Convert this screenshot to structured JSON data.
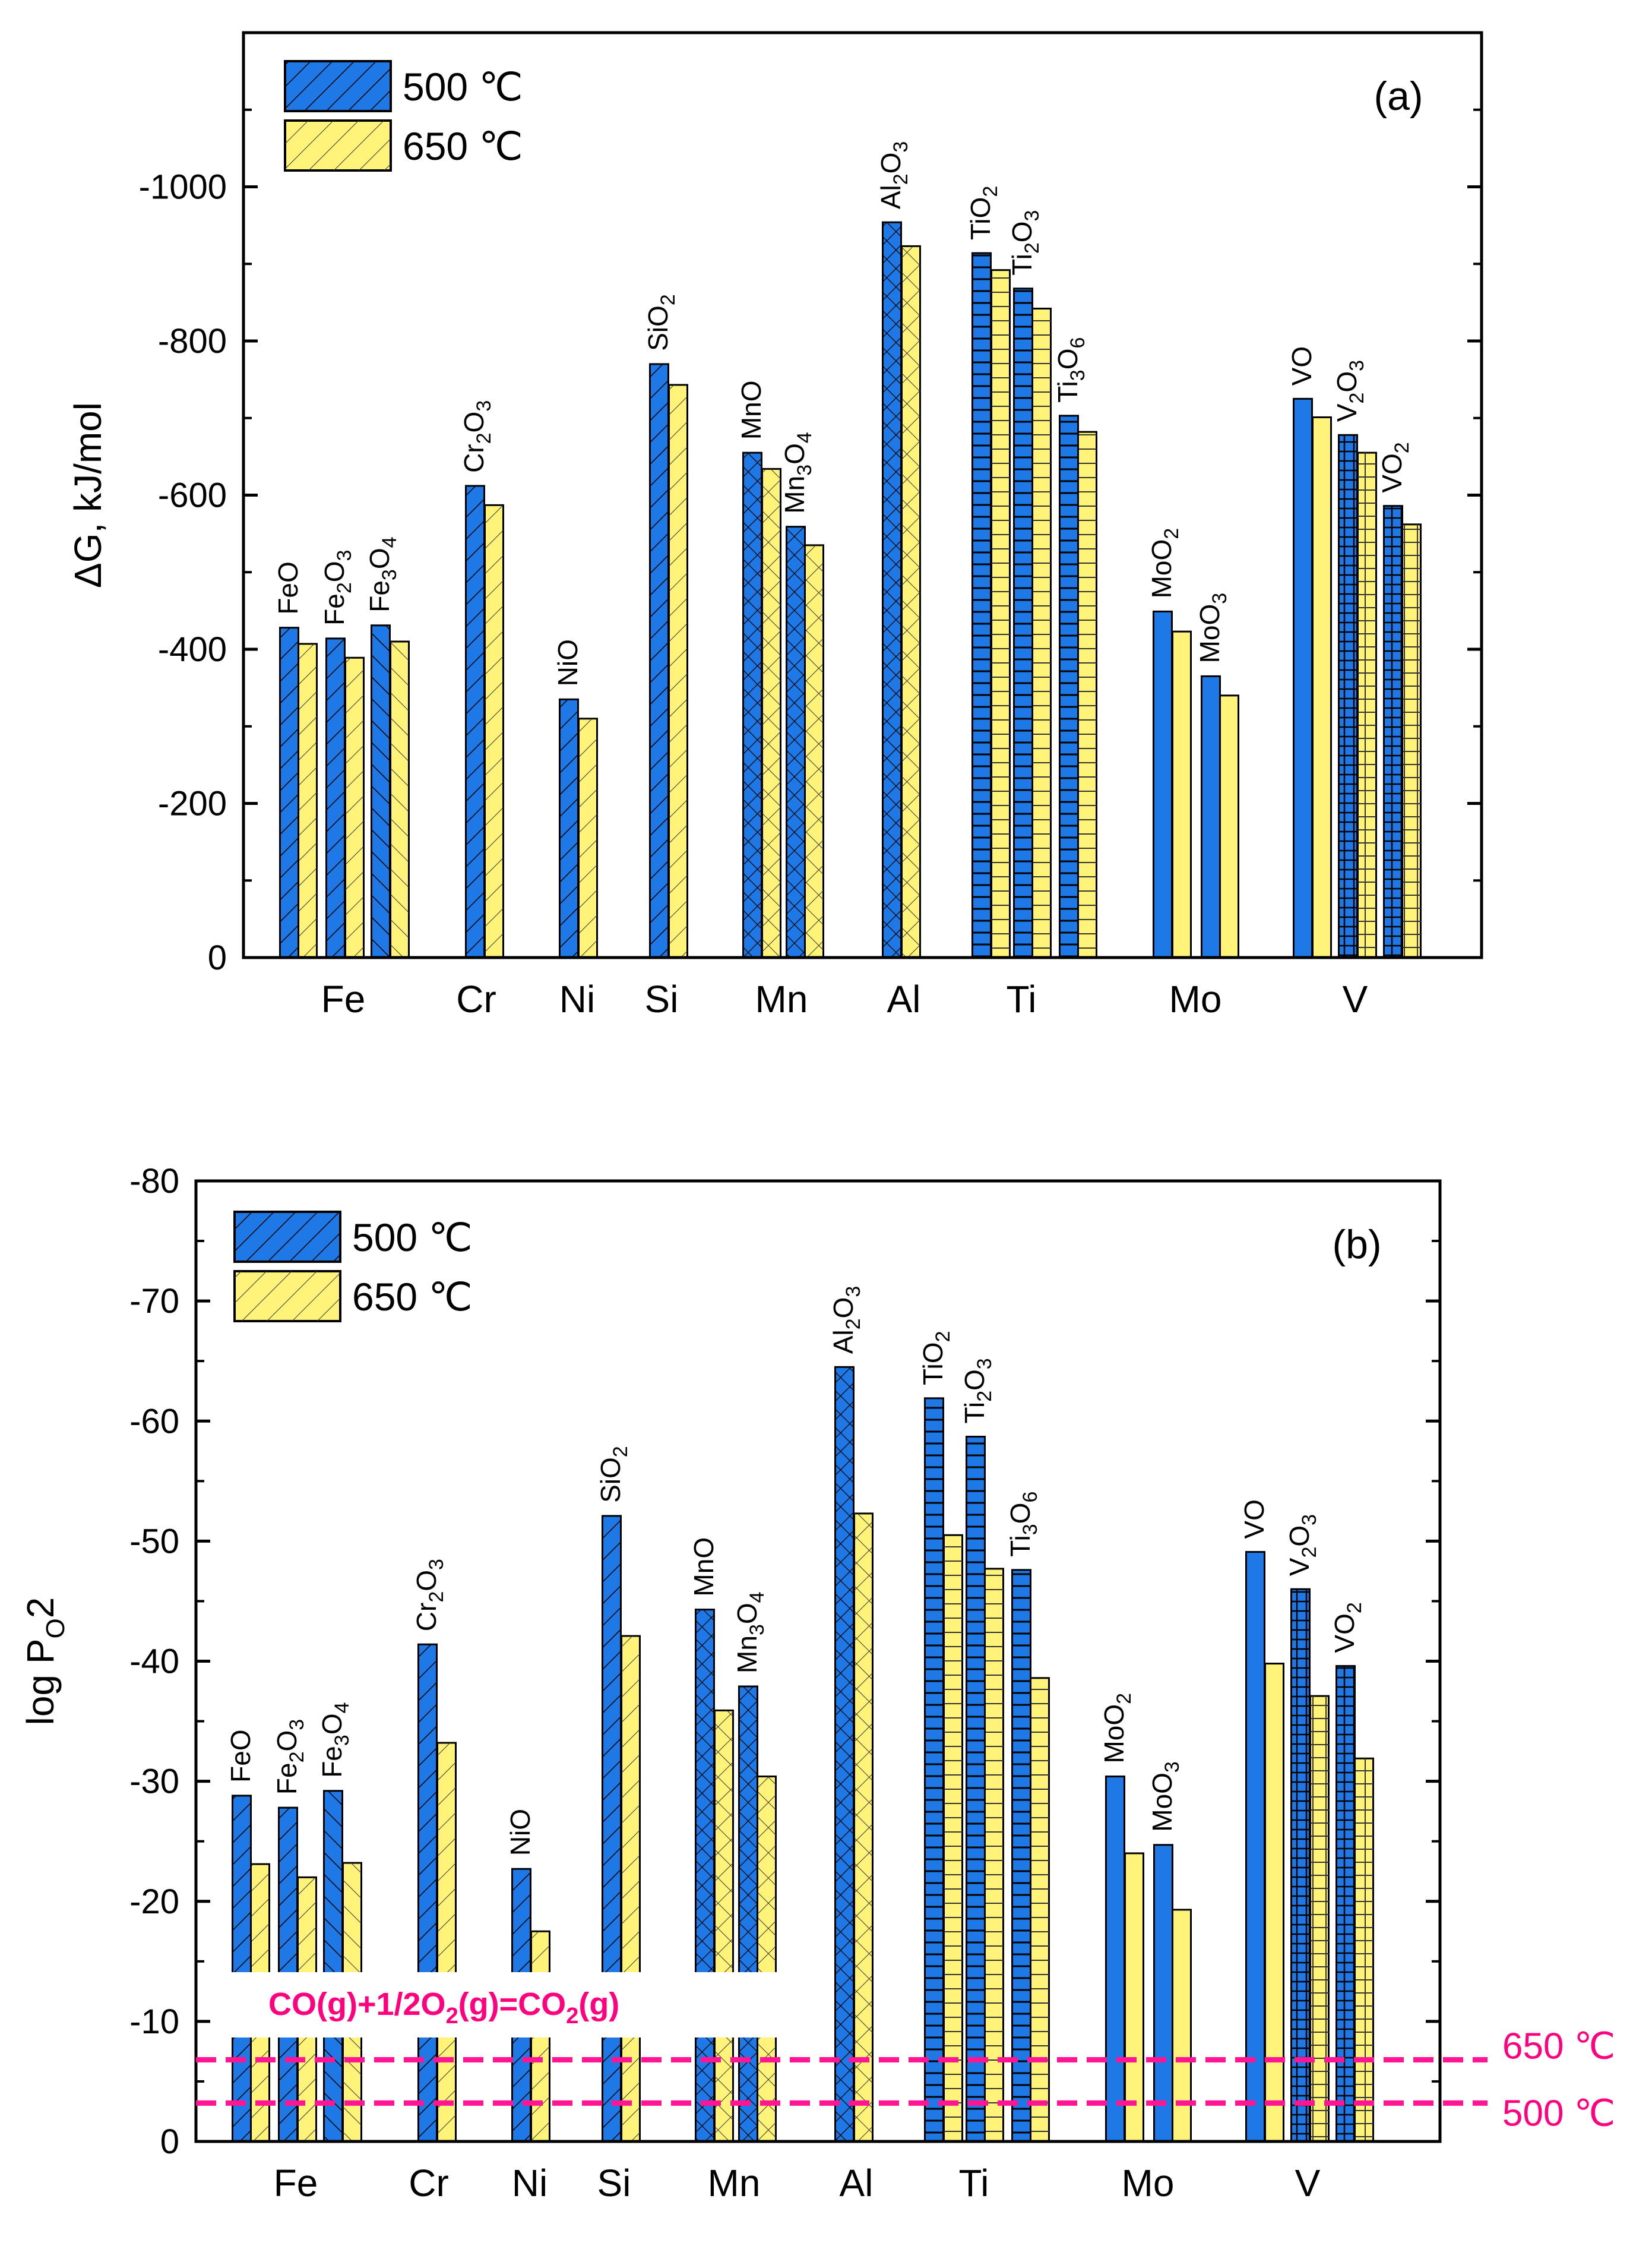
{
  "chart_data": [
    {
      "type": "bar",
      "panel_label": "(a)",
      "ylabel": "ΔG,  kJ/mol",
      "ylim": [
        0,
        -1200
      ],
      "yticks": [
        "0",
        "-200",
        "-400",
        "-600",
        "-800",
        "-1000"
      ],
      "ytick_values": [
        0,
        -200,
        -400,
        -600,
        -800,
        -1000
      ],
      "legend": [
        {
          "name": "500 ℃",
          "color": "#1e78e6"
        },
        {
          "name": "650 ℃",
          "color": "#fff37a"
        }
      ],
      "categories": [
        "Fe",
        "Cr",
        "Ni",
        "Si",
        "Mn",
        "Al",
        "Ti",
        "Mo",
        "V"
      ],
      "oxides": [
        {
          "group": "Fe",
          "name": [
            "FeO",
            ""
          ],
          "v500": -428,
          "v650": -407
        },
        {
          "group": "Fe",
          "name": [
            "Fe",
            "2",
            "O",
            "3"
          ],
          "v500": -414,
          "v650": -389
        },
        {
          "group": "Fe",
          "name": [
            "Fe",
            "3",
            "O",
            "4"
          ],
          "v500": -431,
          "v650": -410
        },
        {
          "group": "Cr",
          "name": [
            "Cr",
            "2",
            "O",
            "3"
          ],
          "v500": -612,
          "v650": -587
        },
        {
          "group": "Ni",
          "name": [
            "NiO",
            ""
          ],
          "v500": -335,
          "v650": -310
        },
        {
          "group": "Si",
          "name": [
            "SiO",
            "2"
          ],
          "v500": -770,
          "v650": -743
        },
        {
          "group": "Mn",
          "name": [
            "MnO",
            ""
          ],
          "v500": -655,
          "v650": -634
        },
        {
          "group": "Mn",
          "name": [
            "Mn",
            "3",
            "O",
            "4"
          ],
          "v500": -559,
          "v650": -535
        },
        {
          "group": "Al",
          "name": [
            "Al",
            "2",
            "O",
            "3"
          ],
          "v500": -954,
          "v650": -923
        },
        {
          "group": "Ti",
          "name": [
            "TiO",
            "2"
          ],
          "v500": -914,
          "v650": -892
        },
        {
          "group": "Ti",
          "name": [
            "Ti",
            "2",
            "O",
            "3"
          ],
          "v500": -868,
          "v650": -842
        },
        {
          "group": "Ti",
          "name": [
            "Ti",
            "3",
            "O",
            "6"
          ],
          "v500": -703,
          "v650": -682
        },
        {
          "group": "Mo",
          "name": [
            "MoO",
            "2"
          ],
          "v500": -449,
          "v650": -423
        },
        {
          "group": "Mo",
          "name": [
            "MoO",
            "3"
          ],
          "v500": -365,
          "v650": -340
        },
        {
          "group": "V",
          "name": [
            "VO",
            ""
          ],
          "v500": -725,
          "v650": -701
        },
        {
          "group": "V",
          "name": [
            "V",
            "2",
            "O",
            "3"
          ],
          "v500": -678,
          "v650": -655
        },
        {
          "group": "V",
          "name": [
            "VO",
            "2"
          ],
          "v500": -586,
          "v650": -562
        }
      ]
    },
    {
      "type": "bar",
      "panel_label": "(b)",
      "ylabel": [
        "log P",
        "O",
        "2"
      ],
      "ylim": [
        0,
        -80
      ],
      "yticks": [
        "0",
        "-10",
        "-20",
        "-30",
        "-40",
        "-50",
        "-60",
        "-70",
        "-80"
      ],
      "ytick_values": [
        0,
        -10,
        -20,
        -30,
        -40,
        -50,
        -60,
        -70,
        -80
      ],
      "legend": [
        {
          "name": "500 ℃",
          "color": "#1e78e6"
        },
        {
          "name": "650 ℃",
          "color": "#fff37a"
        }
      ],
      "categories": [
        "Fe",
        "Cr",
        "Ni",
        "Si",
        "Mn",
        "Al",
        "Ti",
        "Mo",
        "V"
      ],
      "oxides": [
        {
          "group": "Fe",
          "name": [
            "FeO",
            ""
          ],
          "v500": -28.8,
          "v650": -23.1
        },
        {
          "group": "Fe",
          "name": [
            "Fe",
            "2",
            "O",
            "3"
          ],
          "v500": -27.8,
          "v650": -22.0
        },
        {
          "group": "Fe",
          "name": [
            "Fe",
            "3",
            "O",
            "4"
          ],
          "v500": -29.2,
          "v650": -23.2
        },
        {
          "group": "Cr",
          "name": [
            "Cr",
            "2",
            "O",
            "3"
          ],
          "v500": -41.4,
          "v650": -33.2
        },
        {
          "group": "Ni",
          "name": [
            "NiO",
            ""
          ],
          "v500": -22.7,
          "v650": -17.5
        },
        {
          "group": "Si",
          "name": [
            "SiO",
            "2"
          ],
          "v500": -52.1,
          "v650": -42.1
        },
        {
          "group": "Mn",
          "name": [
            "MnO",
            ""
          ],
          "v500": -44.3,
          "v650": -35.9
        },
        {
          "group": "Mn",
          "name": [
            "Mn",
            "3",
            "O",
            "4"
          ],
          "v500": -37.9,
          "v650": -30.4
        },
        {
          "group": "Al",
          "name": [
            "Al",
            "2",
            "O",
            "3"
          ],
          "v500": -64.5,
          "v650": -52.3
        },
        {
          "group": "Ti",
          "name": [
            "TiO",
            "2"
          ],
          "v500": -61.9,
          "v650": -50.5
        },
        {
          "group": "Ti",
          "name": [
            "Ti",
            "2",
            "O",
            "3"
          ],
          "v500": -58.7,
          "v650": -47.7
        },
        {
          "group": "Ti",
          "name": [
            "Ti",
            "3",
            "O",
            "6"
          ],
          "v500": -47.6,
          "v650": -38.6
        },
        {
          "group": "Mo",
          "name": [
            "MoO",
            "2"
          ],
          "v500": -30.4,
          "v650": -24.0
        },
        {
          "group": "Mo",
          "name": [
            "MoO",
            "3"
          ],
          "v500": -24.7,
          "v650": -19.3
        },
        {
          "group": "V",
          "name": [
            "VO",
            ""
          ],
          "v500": -49.1,
          "v650": -39.8
        },
        {
          "group": "V",
          "name": [
            "V",
            "2",
            "O",
            "3"
          ],
          "v500": -46.0,
          "v650": -37.1
        },
        {
          "group": "V",
          "name": [
            "VO",
            "2"
          ],
          "v500": -39.6,
          "v650": -31.9
        }
      ],
      "reaction_label": [
        "CO(g)+1/2O",
        "2",
        "(g)=CO",
        "2",
        "(g)"
      ],
      "reference_lines": [
        {
          "label": "650 ℃",
          "value": -6.8,
          "color": "#ff1493"
        },
        {
          "label": "500 ℃",
          "value": -3.2,
          "color": "#ff1493"
        }
      ]
    }
  ]
}
